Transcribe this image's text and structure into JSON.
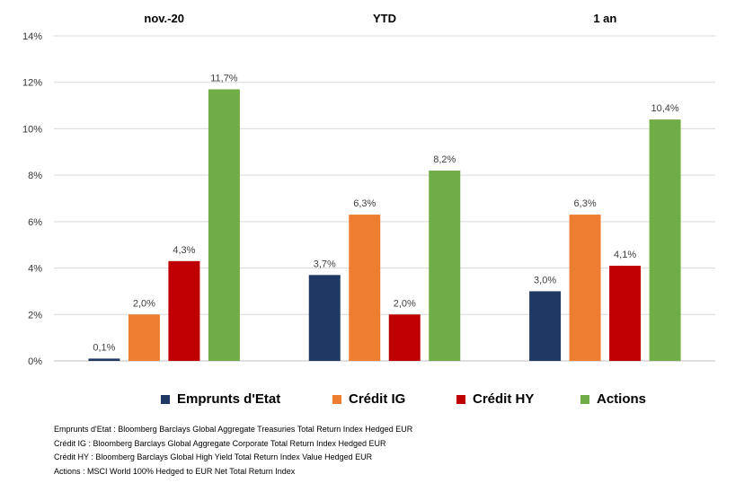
{
  "chart_data": {
    "type": "bar",
    "categories": [
      "nov.-20",
      "YTD",
      "1 an"
    ],
    "series": [
      {
        "name": "Emprunts d'Etat",
        "color": "#1f3864",
        "values": [
          0.1,
          3.7,
          3.0
        ],
        "labels": [
          "0,1%",
          "3,7%",
          "3,0%"
        ]
      },
      {
        "name": "Crédit IG",
        "color": "#ed7d31",
        "values": [
          2.0,
          6.3,
          6.3
        ],
        "labels": [
          "2,0%",
          "6,3%",
          "6,3%"
        ]
      },
      {
        "name": "Crédit HY",
        "color": "#c00000",
        "values": [
          4.3,
          2.0,
          4.1
        ],
        "labels": [
          "4,3%",
          "2,0%",
          "4,1%"
        ]
      },
      {
        "name": "Actions",
        "color": "#70ad47",
        "values": [
          11.7,
          8.2,
          10.4
        ],
        "labels": [
          "11,7%",
          "8,2%",
          "10,4%"
        ]
      }
    ],
    "ylim": [
      0,
      14
    ],
    "yticks": [
      "0%",
      "2%",
      "4%",
      "6%",
      "8%",
      "10%",
      "12%",
      "14%"
    ],
    "grid": true,
    "legend_position": "bottom",
    "category_titles_position": "top"
  },
  "notes": [
    "Emprunts d'Etat : Bloomberg Barclays Global Aggregate Treasuries Total Return Index Hedged EUR",
    "Crédit IG : Bloomberg Barclays Global Aggregate Corporate Total Return Index Hedged EUR",
    "Crédit HY : Bloomberg Barclays Global High Yield Total Return Index Value Hedged EUR",
    "Actions : MSCI World 100% Hedged to EUR Net Total Return Index"
  ]
}
